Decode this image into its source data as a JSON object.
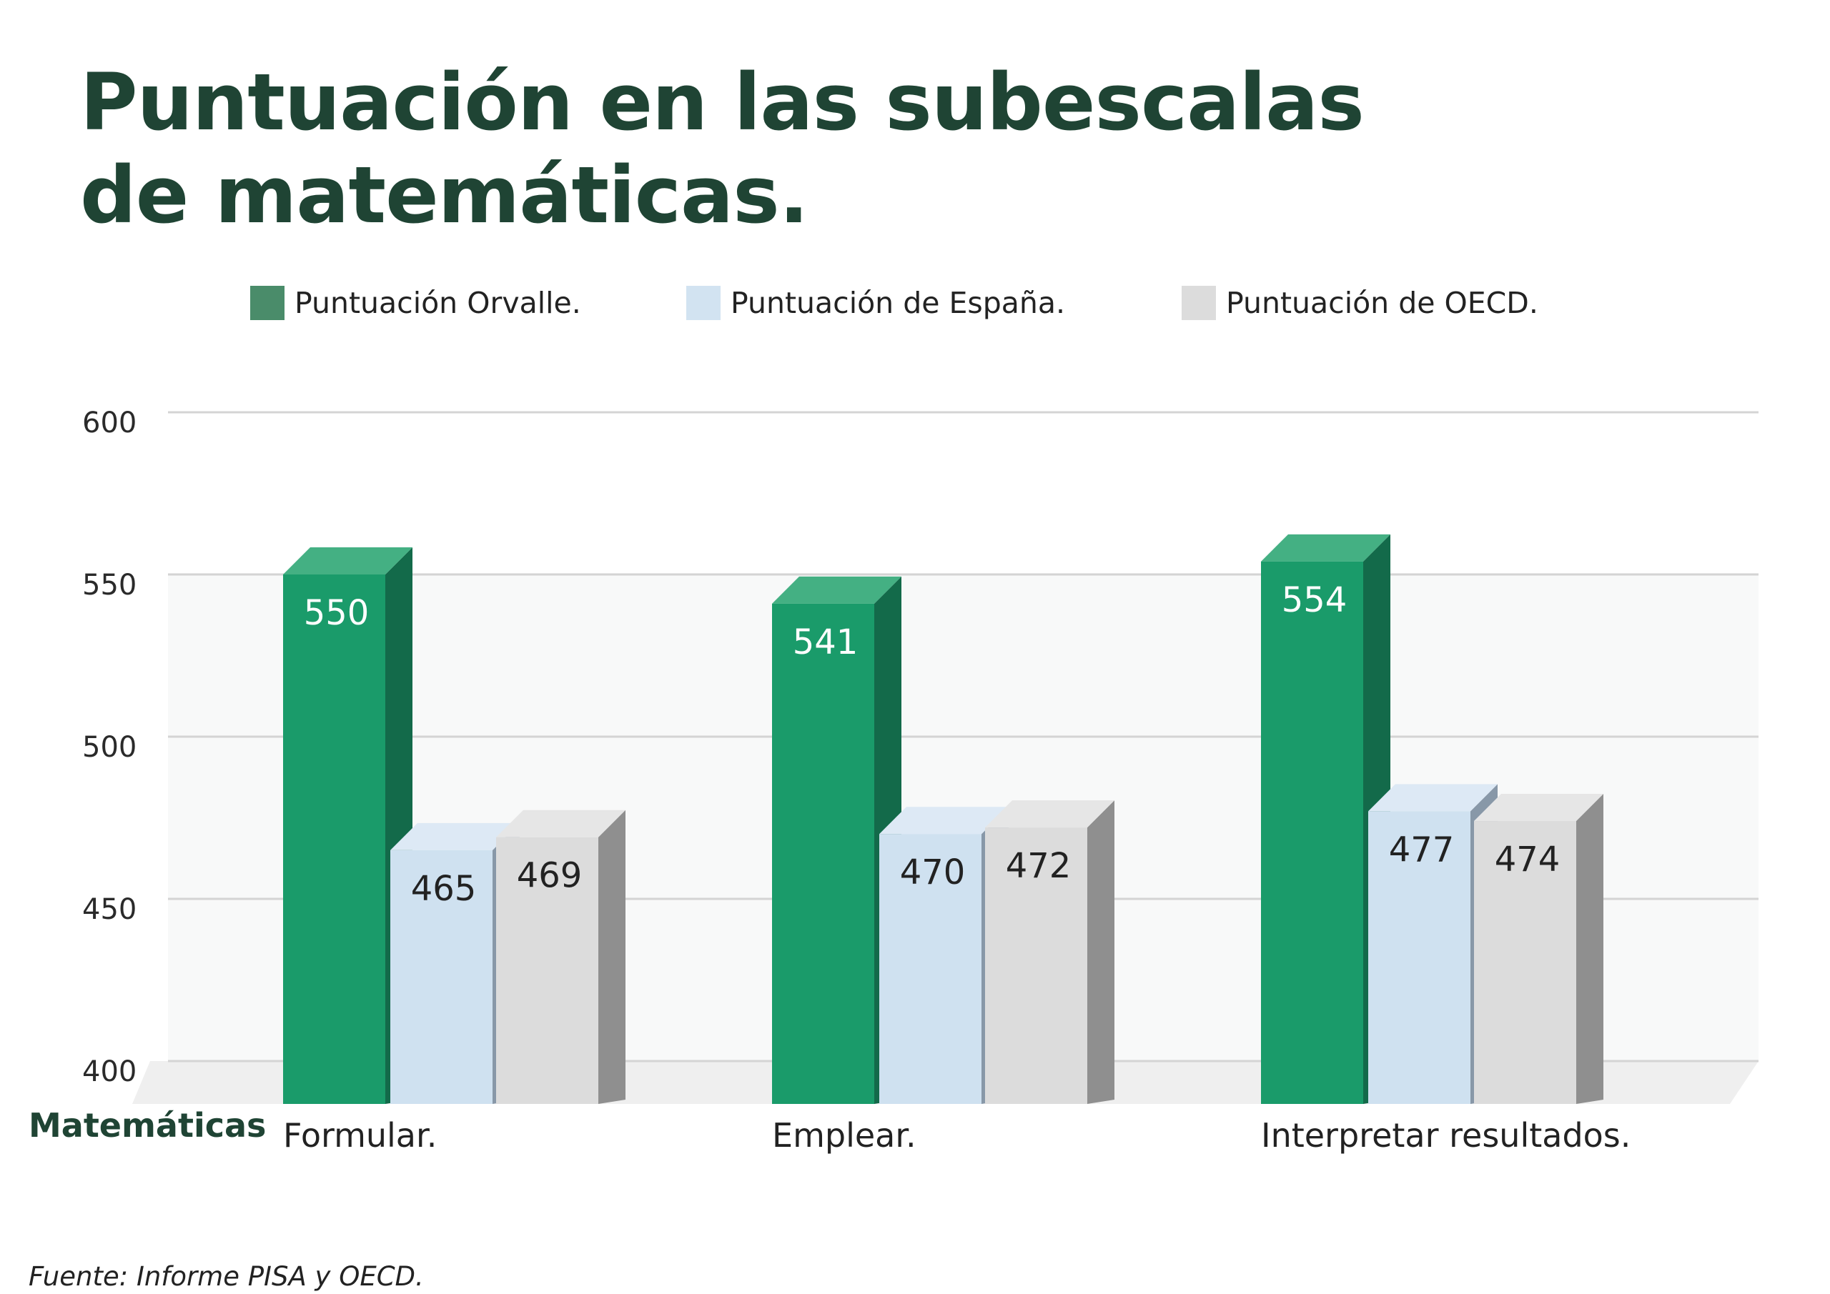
{
  "chart_data": {
    "type": "bar",
    "title": "Puntuación en las subescalas de matemáticas.",
    "title_lines": [
      "Puntuación en las subescalas",
      "de matemáticas."
    ],
    "xlabel": "Matemáticas",
    "ylabel": "",
    "categories": [
      "Formular.",
      "Emplear.",
      "Interpretar resultados."
    ],
    "series": [
      {
        "name": "Puntuación Orvalle.",
        "values": [
          550,
          541,
          554
        ],
        "color": "#1a9b6a",
        "side_color": "#136a4a",
        "top_color": "#44b083",
        "label_color": "#ffffff"
      },
      {
        "name": "Puntuación de España.",
        "values": [
          465,
          470,
          477
        ],
        "color": "#cfe1f0",
        "side_color": "#8898a8",
        "top_color": "#dde9f5",
        "label_color": "#222222"
      },
      {
        "name": "Puntuación de OECD.",
        "values": [
          469,
          472,
          474
        ],
        "color": "#dcdcdc",
        "side_color": "#8f8f8f",
        "top_color": "#e6e6e6",
        "label_color": "#222222"
      }
    ],
    "yticks": [
      400,
      450,
      500,
      550,
      600
    ],
    "ylim": [
      400,
      600
    ],
    "grid": true,
    "legend_position": "top",
    "legend_colors": [
      "#4a8c6a",
      "#d2e3f1",
      "#dcdcdc"
    ],
    "source": "Fuente: Informe PISA y OECD."
  }
}
